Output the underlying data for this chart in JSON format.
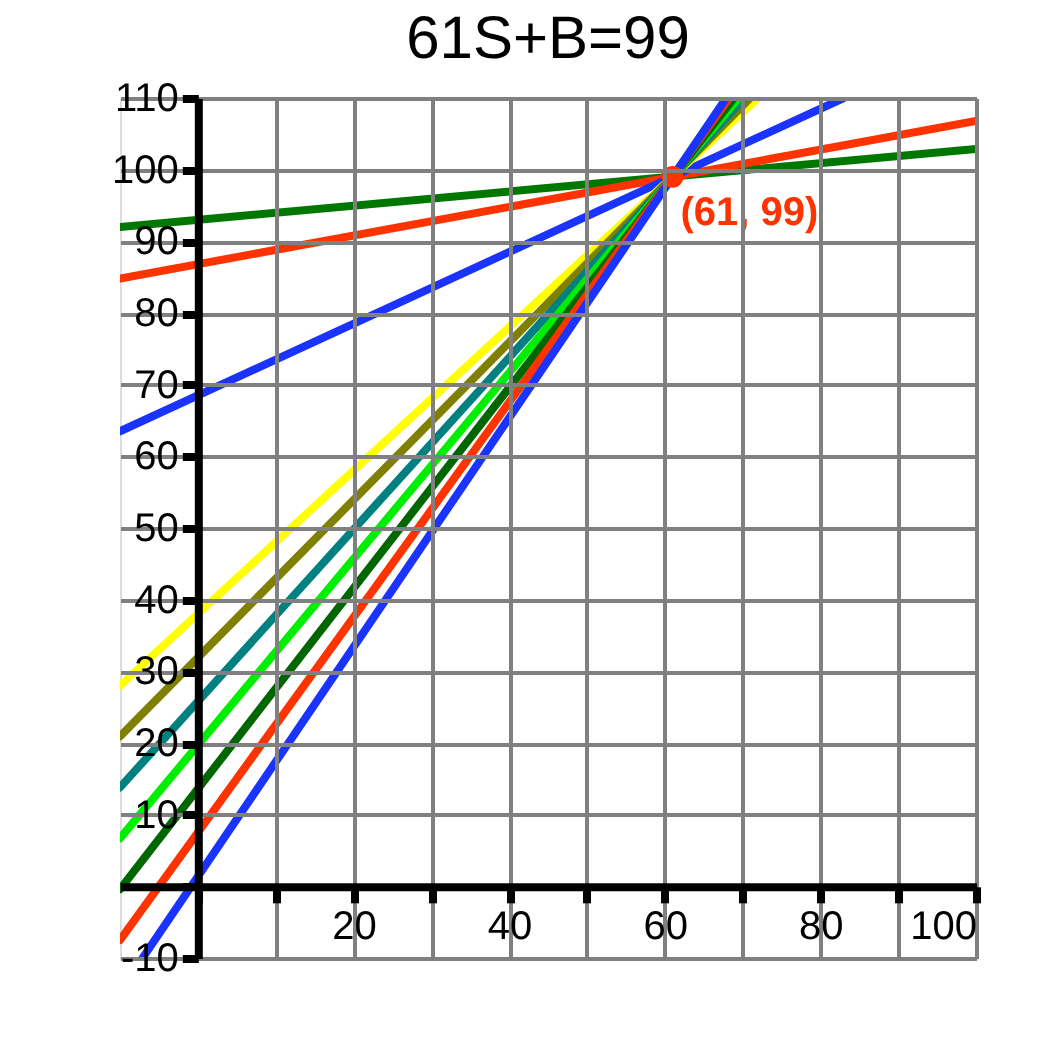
{
  "chart_data": {
    "type": "line",
    "title": "61S+B=99",
    "xlim": [
      -10,
      100
    ],
    "ylim": [
      -10,
      110
    ],
    "xticks": [
      {
        "value": 0,
        "label": null
      },
      {
        "value": 10,
        "label": null
      },
      20,
      {
        "value": 30,
        "label": null
      },
      40,
      {
        "value": 50,
        "label": null
      },
      60,
      {
        "value": 70,
        "label": null
      },
      80,
      {
        "value": 90,
        "label": null
      },
      100
    ],
    "yticks": [
      -10,
      {
        "value": 0,
        "label": null
      },
      10,
      20,
      30,
      40,
      50,
      60,
      70,
      80,
      90,
      100,
      110
    ],
    "grid": true,
    "marker": "none",
    "line_style": "solid",
    "series": [
      {
        "color": "#007700",
        "x": [
          -10,
          100
        ],
        "values": [
          92,
          102.9
        ]
      },
      {
        "color": "#ff3300",
        "x": [
          -10,
          100
        ],
        "values": [
          84.8,
          106.8
        ]
      },
      {
        "color": "#1a33ff",
        "x": [
          -10,
          83
        ],
        "values": [
          63.5,
          110
        ]
      },
      {
        "color": "#ffff00",
        "x": [
          -10,
          72
        ],
        "values": [
          28,
          110
        ]
      },
      {
        "color": "#808000",
        "x": [
          -10,
          71
        ],
        "values": [
          20.9,
          110
        ]
      },
      {
        "color": "#008080",
        "x": [
          -10,
          70.2
        ],
        "values": [
          13.8,
          110
        ]
      },
      {
        "color": "#00ee00",
        "x": [
          -10,
          69.5
        ],
        "values": [
          6.7,
          110
        ]
      },
      {
        "color": "#006600",
        "x": [
          -10,
          68.9
        ],
        "values": [
          -0.4,
          110
        ]
      },
      {
        "color": "#ff3300",
        "x": [
          -10,
          68.3
        ],
        "values": [
          -7.5,
          110
        ]
      },
      {
        "color": "#1a33ff",
        "x": [
          -7.1,
          67.9
        ],
        "values": [
          -10,
          110
        ]
      },
      {
        "type": "scatter",
        "marker": "circle",
        "color": "#ff3300",
        "x": [
          61
        ],
        "values": [
          99
        ]
      }
    ],
    "annotations": [
      {
        "text": "(61, 99)",
        "x": 61,
        "y": 99
      }
    ]
  }
}
